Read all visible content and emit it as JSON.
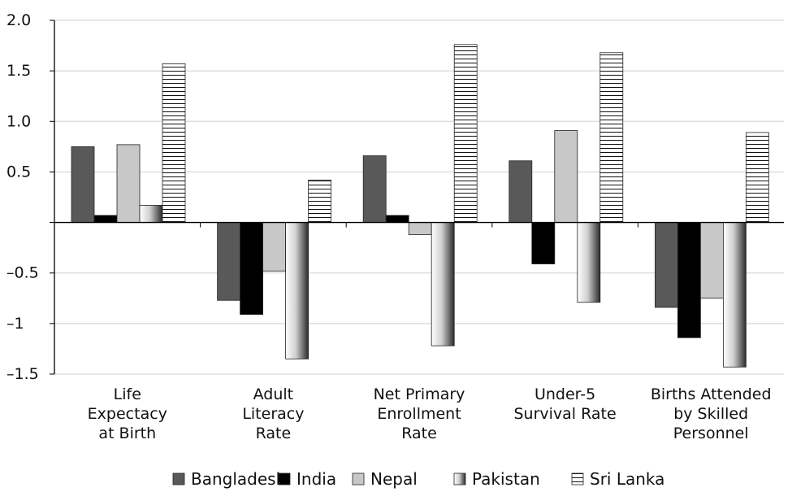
{
  "chart_data": {
    "type": "bar",
    "title": "",
    "xlabel": "",
    "ylabel": "",
    "ylim": [
      -1.5,
      2.0
    ],
    "grid": true,
    "legend_position": "bottom",
    "y_tick_labels": [
      "2.0",
      "1.5",
      "1.0",
      "0.5",
      "–0.5",
      "–1",
      "–1.5"
    ],
    "y_tick_values": [
      2.0,
      1.5,
      1.0,
      0.5,
      -0.5,
      -1.0,
      -1.5
    ],
    "categories": [
      [
        "Life",
        "Expectacy",
        "at Birth"
      ],
      [
        "Adult",
        "Literacy",
        "Rate"
      ],
      [
        "Net Primary",
        "Enrollment",
        "Rate"
      ],
      [
        "Under-5",
        "Survival Rate"
      ],
      [
        "Births Attended",
        "by Skilled",
        "Personnel"
      ]
    ],
    "series": [
      {
        "name": "Bangladesh",
        "values": [
          0.75,
          -0.77,
          0.66,
          0.61,
          -0.84
        ]
      },
      {
        "name": "India",
        "values": [
          0.07,
          -0.91,
          0.07,
          -0.41,
          -1.14
        ]
      },
      {
        "name": "Nepal",
        "values": [
          0.77,
          -0.48,
          -0.12,
          0.91,
          -0.75
        ]
      },
      {
        "name": "Pakistan",
        "values": [
          0.17,
          -1.35,
          -1.22,
          -0.79,
          -1.43
        ]
      },
      {
        "name": "Sri Lanka",
        "values": [
          1.57,
          0.42,
          1.76,
          1.68,
          0.89
        ]
      }
    ],
    "colors": {
      "Bangladesh": "#595959",
      "India": "#000000",
      "Nepal": "#c8c8c8",
      "Pakistan": "gradient",
      "Sri Lanka": "hatch"
    }
  }
}
